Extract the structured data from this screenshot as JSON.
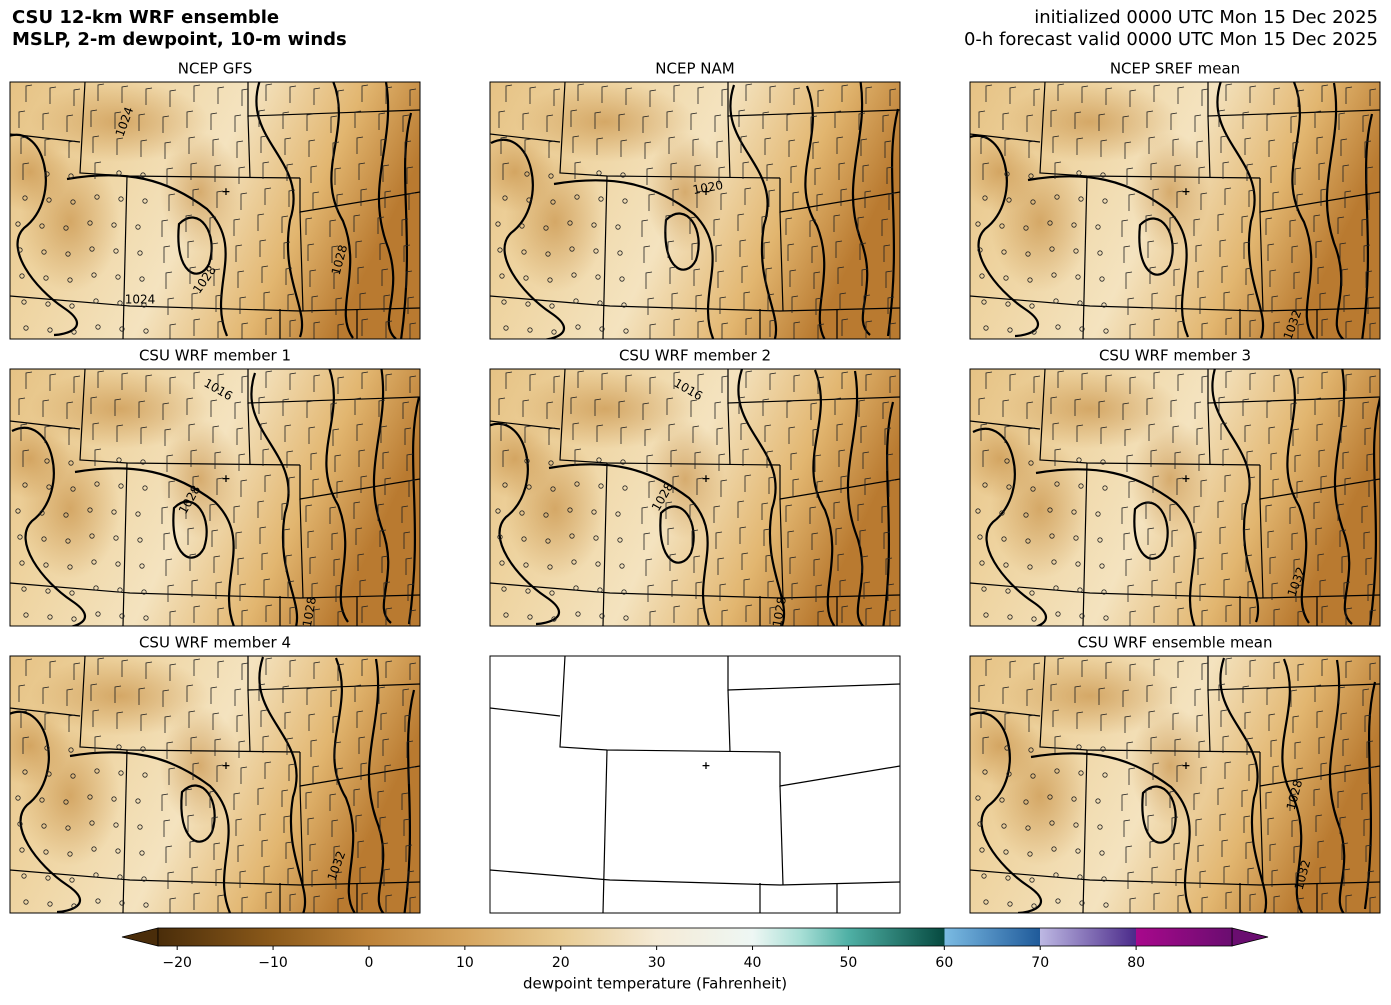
{
  "header": {
    "title_line1": "CSU 12-km WRF ensemble",
    "title_line2": "MSLP, 2-m dewpoint, 10-m winds",
    "init_line": "initialized 0000 UTC Mon 15 Dec 2025",
    "valid_line": "0-h forecast valid 0000 UTC Mon 15 Dec 2025"
  },
  "panels": [
    {
      "title": "NCEP GFS",
      "contour_labels": [
        "1024",
        "1028",
        "1028",
        "1024"
      ]
    },
    {
      "title": "NCEP NAM",
      "contour_labels": [
        "1020"
      ]
    },
    {
      "title": "NCEP SREF mean",
      "contour_labels": [
        "1032"
      ]
    },
    {
      "title": "CSU WRF member 1",
      "contour_labels": [
        "1016",
        "1028",
        "1028"
      ]
    },
    {
      "title": "CSU WRF member 2",
      "contour_labels": [
        "1016",
        "1028",
        "1028"
      ]
    },
    {
      "title": "CSU WRF member 3",
      "contour_labels": [
        "1032"
      ]
    },
    {
      "title": "CSU WRF member 4",
      "contour_labels": [
        "1032"
      ]
    },
    {
      "title": null,
      "contour_labels": []
    },
    {
      "title": "CSU WRF ensemble mean",
      "contour_labels": [
        "1028",
        "1032"
      ]
    }
  ],
  "colorbar": {
    "label": "dewpoint temperature (Fahrenheit)",
    "lim": [
      -22,
      90
    ],
    "ticks": [
      {
        "value": -20,
        "label": "−20"
      },
      {
        "value": -10,
        "label": "−10"
      },
      0,
      10,
      20,
      30,
      40,
      50,
      60,
      70,
      80
    ],
    "stops": [
      {
        "value": -22,
        "color": "#4a2d0a"
      },
      {
        "value": -10,
        "color": "#8c5a1a"
      },
      {
        "value": 0,
        "color": "#bd8238"
      },
      {
        "value": 10,
        "color": "#d6a55e"
      },
      {
        "value": 20,
        "color": "#e8cb92"
      },
      {
        "value": 30,
        "color": "#f5ebd6"
      },
      {
        "value": 40,
        "color": "#eef7f4"
      },
      {
        "value": 45,
        "color": "#a8dfd6"
      },
      {
        "value": 50,
        "color": "#4fb0a5"
      },
      {
        "value": 60,
        "color": "#064a40"
      },
      {
        "value": 60,
        "color": "#7bbbe3"
      },
      {
        "value": 70,
        "color": "#1f5a9a"
      },
      {
        "value": 70,
        "color": "#bdb8e3"
      },
      {
        "value": 80,
        "color": "#4b2a8a"
      },
      {
        "value": 80,
        "color": "#a8088c"
      },
      {
        "value": 90,
        "color": "#6a0d70"
      }
    ]
  }
}
